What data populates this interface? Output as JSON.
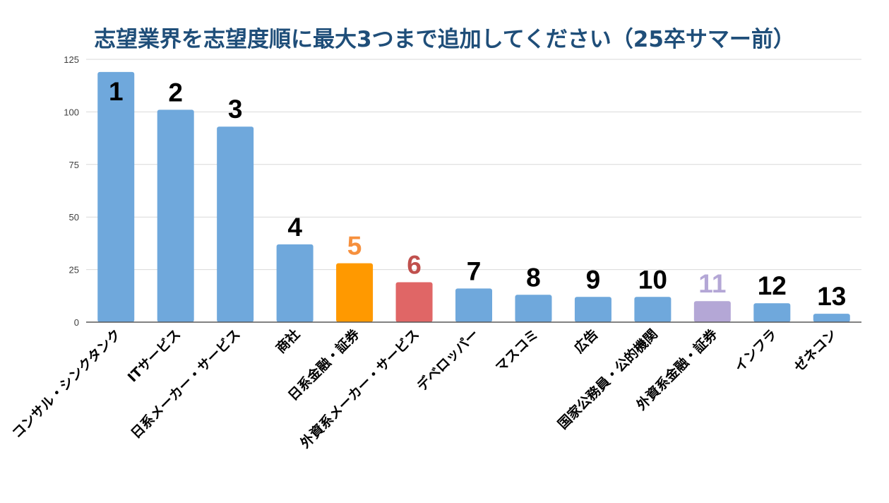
{
  "chart_data": {
    "type": "bar",
    "title": "志望業界を志望度順に最大3つまで追加してください（25卒サマー前）",
    "xlabel": "",
    "ylabel": "",
    "ylim": [
      0,
      125
    ],
    "yticks": [
      0,
      25,
      50,
      75,
      100,
      125
    ],
    "grid": true,
    "categories": [
      "コンサル・シンクタンク",
      "ITサービス",
      "日系メーカー・サービス",
      "商社",
      "日系金融・証券",
      "外資系メーカー・サービス",
      "デベロッパー",
      "マスコミ",
      "広告",
      "国家公務員・公的機関",
      "外資系金融・証券",
      "インフラ",
      "ゼネコン"
    ],
    "values": [
      119,
      101,
      93,
      37,
      28,
      19,
      16,
      13,
      12,
      12,
      10,
      9,
      4
    ],
    "rank_labels": [
      "1",
      "2",
      "3",
      "4",
      "5",
      "6",
      "7",
      "8",
      "9",
      "10",
      "11",
      "12",
      "13"
    ],
    "bar_colors": [
      "#6fa8dc",
      "#6fa8dc",
      "#6fa8dc",
      "#6fa8dc",
      "#ff9900",
      "#e06666",
      "#6fa8dc",
      "#6fa8dc",
      "#6fa8dc",
      "#6fa8dc",
      "#b4a7d6",
      "#6fa8dc",
      "#6fa8dc"
    ],
    "rank_label_colors": [
      "#000000",
      "#000000",
      "#000000",
      "#000000",
      "#f6903d",
      "#c0504d",
      "#000000",
      "#000000",
      "#000000",
      "#000000",
      "#b4a7d6",
      "#000000",
      "#000000"
    ]
  },
  "colors": {
    "title": "#1f4e79",
    "grid": "#d9d9d9",
    "axis": "#595959"
  }
}
